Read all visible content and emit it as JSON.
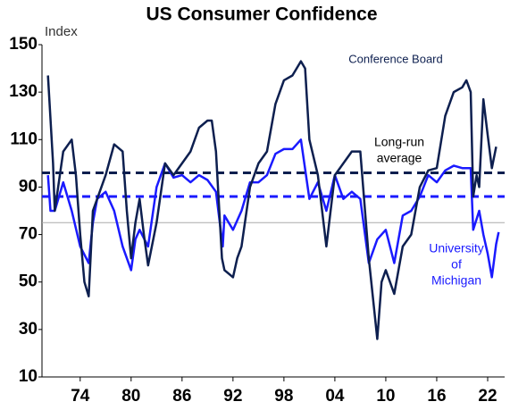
{
  "chart_data": {
    "type": "line",
    "title": "US Consumer Confidence",
    "y_axis_label": "Index",
    "xlim": [
      1969.5,
      2024
    ],
    "ylim": [
      10,
      150
    ],
    "yticks": [
      10,
      30,
      50,
      70,
      90,
      110,
      130,
      150
    ],
    "xticks": [
      {
        "value": 1974,
        "label": "74"
      },
      {
        "value": 1980,
        "label": "80"
      },
      {
        "value": 1986,
        "label": "86"
      },
      {
        "value": 1992,
        "label": "92"
      },
      {
        "value": 1998,
        "label": "98"
      },
      {
        "value": 2004,
        "label": "04"
      },
      {
        "value": 2010,
        "label": "10"
      },
      {
        "value": 2016,
        "label": "16"
      },
      {
        "value": 2022,
        "label": "22"
      }
    ],
    "reference_lines": [
      {
        "value": 96,
        "color": "#0d1f4f",
        "dashed": true
      },
      {
        "value": 86,
        "color": "#1a1aff",
        "dashed": true
      },
      {
        "value": 75,
        "color": "#aaaaaa",
        "dashed": false
      }
    ],
    "annotations": [
      {
        "lines": [
          "Conference Board"
        ],
        "color": "#0d1f4f"
      },
      {
        "lines": [
          "Long-run",
          "average"
        ],
        "color": "#000000"
      },
      {
        "lines": [
          "University",
          "of",
          "Michigan"
        ],
        "color": "#1a1aff"
      }
    ],
    "series": [
      {
        "name": "Conference Board",
        "color": "#0d1f4f",
        "x": [
          1970.2,
          1970.8,
          1971,
          1972,
          1973,
          1973.5,
          1974,
          1974.5,
          1975,
          1975.5,
          1976,
          1977,
          1978,
          1979,
          1979.5,
          1980,
          1980.5,
          1981,
          1981.5,
          1982,
          1983,
          1984,
          1985,
          1986,
          1987,
          1988,
          1989,
          1989.5,
          1990,
          1990.7,
          1991,
          1992,
          1992.5,
          1993,
          1994,
          1995,
          1996,
          1997,
          1998,
          1999,
          2000,
          2000.5,
          2001,
          2002,
          2003,
          2004,
          2005,
          2006,
          2007,
          2008,
          2009,
          2009.5,
          2010,
          2011,
          2012,
          2013,
          2014,
          2015,
          2016,
          2017,
          2018,
          2019,
          2019.5,
          2020,
          2020.3,
          2020.7,
          2021,
          2021.5,
          2022,
          2022.5,
          2023
        ],
        "values": [
          137,
          100,
          80,
          105,
          110,
          95,
          70,
          50,
          44,
          80,
          85,
          95,
          108,
          105,
          80,
          60,
          75,
          85,
          70,
          57,
          75,
          100,
          95,
          100,
          105,
          115,
          118,
          118,
          105,
          60,
          55,
          52,
          60,
          65,
          90,
          100,
          105,
          125,
          135,
          137,
          143,
          140,
          110,
          95,
          65,
          95,
          100,
          105,
          105,
          60,
          26,
          50,
          55,
          45,
          65,
          70,
          90,
          97,
          98,
          120,
          130,
          132,
          135,
          130,
          86,
          95,
          90,
          127,
          112,
          98,
          107
        ]
      },
      {
        "name": "University of Michigan",
        "color": "#1a1aff",
        "x": [
          1970.2,
          1970.5,
          1971,
          1972,
          1973,
          1974,
          1975,
          1975.5,
          1976,
          1977,
          1978,
          1979,
          1980,
          1980.5,
          1981,
          1982,
          1983,
          1984,
          1985,
          1986,
          1987,
          1988,
          1989,
          1990,
          1990.8,
          1991,
          1992,
          1993,
          1994,
          1995,
          1996,
          1997,
          1998,
          1999,
          2000,
          2001,
          2002,
          2003,
          2004,
          2005,
          2006,
          2007,
          2008,
          2009,
          2010,
          2011,
          2012,
          2013,
          2014,
          2015,
          2016,
          2017,
          2018,
          2019,
          2020,
          2020.3,
          2021,
          2021.5,
          2022,
          2022.5,
          2023,
          2023.3
        ],
        "values": [
          95,
          80,
          80,
          92,
          80,
          65,
          58,
          75,
          85,
          88,
          80,
          65,
          55,
          68,
          72,
          65,
          90,
          100,
          94,
          95,
          92,
          95,
          93,
          88,
          65,
          78,
          72,
          80,
          92,
          92,
          95,
          104,
          106,
          106,
          110,
          85,
          92,
          80,
          95,
          85,
          88,
          85,
          58,
          68,
          72,
          58,
          78,
          80,
          86,
          95,
          92,
          97,
          99,
          98,
          98,
          72,
          80,
          70,
          62,
          52,
          66,
          71
        ]
      }
    ]
  }
}
